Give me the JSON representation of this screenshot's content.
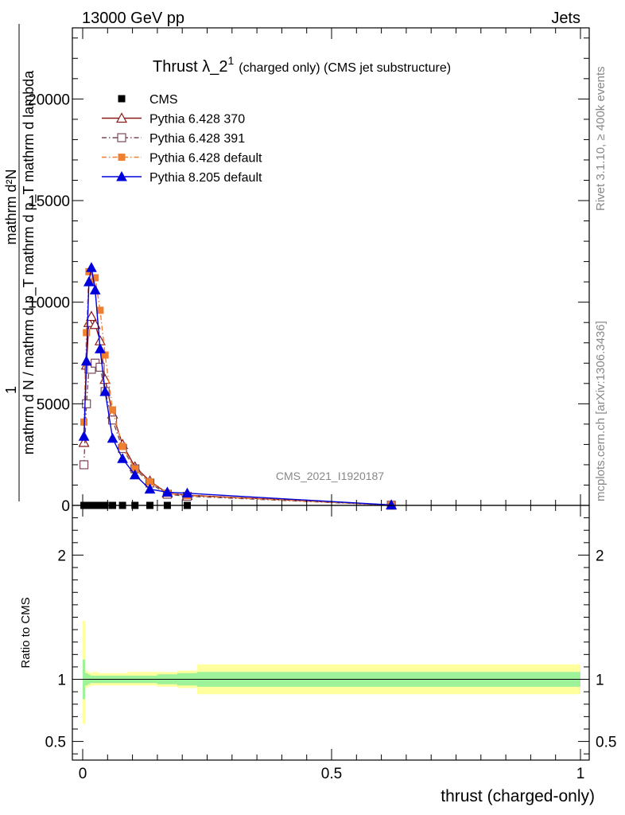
{
  "header": {
    "left": "13000 GeV pp",
    "right": "Jets"
  },
  "side_labels": {
    "rivet": "Rivet 3.1.10, ≥ 400k events",
    "mcplots": "mcplots.cern.ch [arXiv:1306.3436]"
  },
  "chart_data": {
    "type": "line",
    "title": "Thrust λ_2",
    "title_sup": "1",
    "title_suffix": "(charged only) (CMS jet substructure)",
    "watermark": "CMS_2021_I1920187",
    "ylabel_main": {
      "frac_one": "1",
      "frac_line1": "mathrm d²N",
      "frac_line2": "mathrm d N / mathrm d p_T mathrm d p_T mathrm d lambda"
    },
    "ylabel_ratio": "Ratio to CMS",
    "xlabel": "thrust (charged-only)",
    "xlim": [
      0,
      1
    ],
    "ylim": [
      0,
      23500
    ],
    "ratio_ylim": [
      0.35,
      2.4
    ],
    "x_ticks": [
      0,
      0.5,
      1
    ],
    "x_tick_labels": [
      "0",
      "0.5",
      "1"
    ],
    "y_ticks": [
      0,
      5000,
      10000,
      15000,
      20000
    ],
    "y_tick_labels": [
      "0",
      "5000",
      "10000",
      "15000",
      "20000"
    ],
    "ratio_ticks": [
      0.5,
      1,
      2
    ],
    "ratio_tick_labels": [
      "0.5",
      "1",
      "2"
    ],
    "legend_position": "top-left",
    "series": [
      {
        "name": "CMS",
        "color": "#000000",
        "marker": "square-filled",
        "line": "none",
        "x": [
          0.0025,
          0.0075,
          0.0125,
          0.0175,
          0.025,
          0.035,
          0.045,
          0.06,
          0.08,
          0.105,
          0.135,
          0.17,
          0.21,
          0.62
        ],
        "y": [
          0,
          0,
          0,
          0,
          0,
          0,
          0,
          0,
          0,
          0,
          0,
          0,
          0,
          0
        ]
      },
      {
        "name": "Pythia 6.428 370",
        "color": "#8b1a1a",
        "marker": "triangle-open",
        "line": "solid",
        "x": [
          0.0025,
          0.0075,
          0.0125,
          0.0175,
          0.025,
          0.035,
          0.045,
          0.06,
          0.08,
          0.105,
          0.135,
          0.17,
          0.21,
          0.62
        ],
        "y": [
          3100,
          6900,
          9000,
          9300,
          8900,
          8100,
          6200,
          4500,
          3000,
          1900,
          1200,
          600,
          500,
          20
        ]
      },
      {
        "name": "Pythia 6.428 391",
        "color": "#7a4a5a",
        "marker": "square-open",
        "line": "dashdot",
        "x": [
          0.0025,
          0.0075,
          0.0125,
          0.0175,
          0.025,
          0.035,
          0.045,
          0.06,
          0.08,
          0.105,
          0.135,
          0.17,
          0.21,
          0.62
        ],
        "y": [
          2000,
          5000,
          6700,
          6700,
          7000,
          6800,
          5600,
          4200,
          2800,
          1800,
          1100,
          550,
          450,
          10
        ]
      },
      {
        "name": "Pythia 6.428 default",
        "color": "#f08030",
        "marker": "square-filled",
        "line": "dashdot",
        "x": [
          0.0025,
          0.0075,
          0.0125,
          0.0175,
          0.025,
          0.035,
          0.045,
          0.06,
          0.08,
          0.105,
          0.135,
          0.17,
          0.21,
          0.62
        ],
        "y": [
          4100,
          8500,
          11500,
          11000,
          11200,
          9600,
          7400,
          4700,
          2900,
          1800,
          1150,
          600,
          480,
          15
        ]
      },
      {
        "name": "Pythia 8.205 default",
        "color": "#0000dd",
        "marker": "triangle-filled",
        "line": "solid",
        "x": [
          0.0025,
          0.0075,
          0.0125,
          0.0175,
          0.025,
          0.035,
          0.045,
          0.06,
          0.08,
          0.105,
          0.135,
          0.17,
          0.21,
          0.62
        ],
        "y": [
          3400,
          7100,
          11000,
          11700,
          10600,
          7700,
          5600,
          3300,
          2300,
          1500,
          800,
          650,
          600,
          20
        ]
      }
    ],
    "ratio_band": {
      "x_edges": [
        0,
        0.005,
        0.01,
        0.015,
        0.02,
        0.03,
        0.04,
        0.05,
        0.07,
        0.09,
        0.12,
        0.15,
        0.19,
        0.23,
        1.0
      ],
      "inner_lo": [
        0.84,
        0.95,
        0.96,
        0.97,
        0.97,
        0.97,
        0.97,
        0.97,
        0.97,
        0.97,
        0.97,
        0.96,
        0.95,
        0.94
      ],
      "inner_hi": [
        1.16,
        1.05,
        1.04,
        1.03,
        1.03,
        1.03,
        1.03,
        1.03,
        1.03,
        1.03,
        1.03,
        1.04,
        1.05,
        1.06
      ],
      "outer_lo": [
        0.64,
        0.93,
        0.94,
        0.95,
        0.95,
        0.95,
        0.95,
        0.95,
        0.95,
        0.95,
        0.95,
        0.94,
        0.93,
        0.88
      ],
      "outer_hi": [
        1.47,
        1.07,
        1.06,
        1.05,
        1.06,
        1.05,
        1.05,
        1.05,
        1.05,
        1.06,
        1.06,
        1.06,
        1.07,
        1.12
      ],
      "inner_color": "#9ef29a",
      "outer_color": "#ffff9e"
    }
  }
}
